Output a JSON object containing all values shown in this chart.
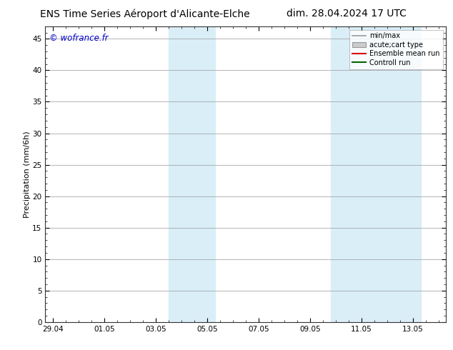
{
  "title_left": "ENS Time Series Aéroport d'Alicante-Elche",
  "title_right": "dim. 28.04.2024 17 UTC",
  "ylabel": "Precipitation (mm/6h)",
  "watermark": "© wofrance.fr",
  "x_tick_labels": [
    "29.04",
    "01.05",
    "03.05",
    "05.05",
    "07.05",
    "09.05",
    "11.05",
    "13.05"
  ],
  "x_tick_positions": [
    0,
    2,
    4,
    6,
    8,
    10,
    12,
    14
  ],
  "y_ticks": [
    0,
    5,
    10,
    15,
    20,
    25,
    30,
    35,
    40,
    45
  ],
  "ylim": [
    0,
    47
  ],
  "xlim": [
    -0.3,
    15.3
  ],
  "shaded_regions": [
    {
      "x_start": 4.5,
      "x_end": 6.3,
      "color": "#daeef8"
    },
    {
      "x_start": 10.8,
      "x_end": 14.3,
      "color": "#daeef8"
    }
  ],
  "background_color": "#ffffff",
  "plot_bg_color": "#ffffff",
  "grid_color": "#999999",
  "legend_items": [
    {
      "label": "min/max",
      "type": "line",
      "color": "#999999",
      "lw": 1.2
    },
    {
      "label": "acute;cart type",
      "type": "box",
      "facecolor": "#cccccc",
      "edgecolor": "#999999"
    },
    {
      "label": "Ensemble mean run",
      "type": "line",
      "color": "#dd0000",
      "lw": 1.5
    },
    {
      "label": "Controll run",
      "type": "line",
      "color": "#006600",
      "lw": 1.5
    }
  ],
  "watermark_color": "#0000cc",
  "title_fontsize": 10,
  "tick_fontsize": 7.5,
  "ylabel_fontsize": 8,
  "legend_fontsize": 7
}
